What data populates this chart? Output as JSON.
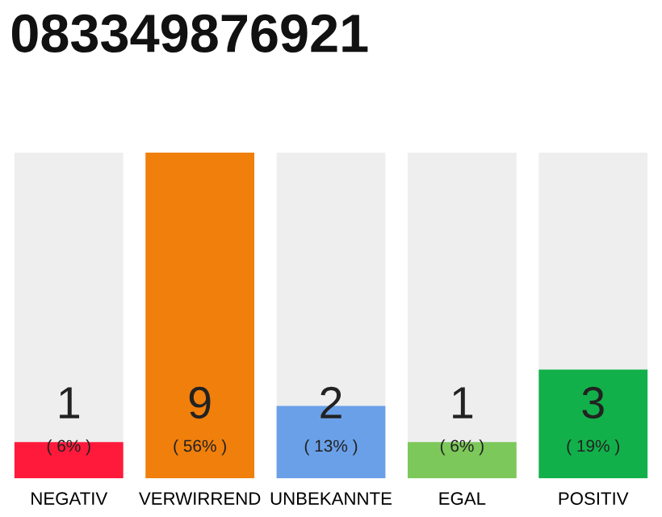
{
  "chart_data": {
    "type": "bar",
    "title": "083349876921",
    "categories": [
      "NEGATIV",
      "VERWIRREND",
      "UNBEKANNTE",
      "EGAL",
      "POSITIV"
    ],
    "values": [
      1,
      9,
      2,
      1,
      3
    ],
    "colors": [
      "#ff1a3c",
      "#f07f0c",
      "#6aa0e8",
      "#7dc85a",
      "#12b04a"
    ],
    "value_labels": [
      "1\n( 6% )",
      "9\n( 56% )",
      "2\n( 13% )",
      "1\n( 6% )",
      "3\n( 19% )"
    ],
    "grid": false,
    "legend": false
  }
}
